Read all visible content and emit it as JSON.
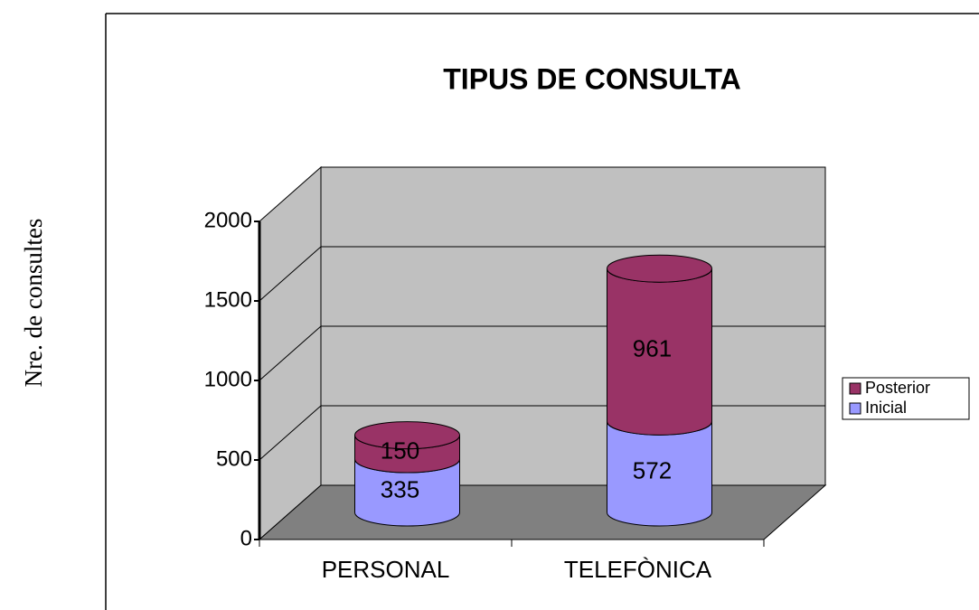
{
  "chart_data": {
    "type": "bar",
    "stacked": true,
    "title": "TIPUS DE CONSULTA",
    "y_label": "Nre. de consultes",
    "categories": [
      "PERSONAL",
      "TELEFÒNICA"
    ],
    "series": [
      {
        "name": "Inicial",
        "color": "#9999ff",
        "values": [
          335,
          572
        ]
      },
      {
        "name": "Posterior",
        "color": "#993366",
        "values": [
          150,
          961
        ]
      }
    ],
    "ylim": [
      0,
      2000
    ],
    "yticks": [
      0,
      500,
      1000,
      1500,
      2000
    ],
    "grid": true,
    "legend": "right"
  }
}
